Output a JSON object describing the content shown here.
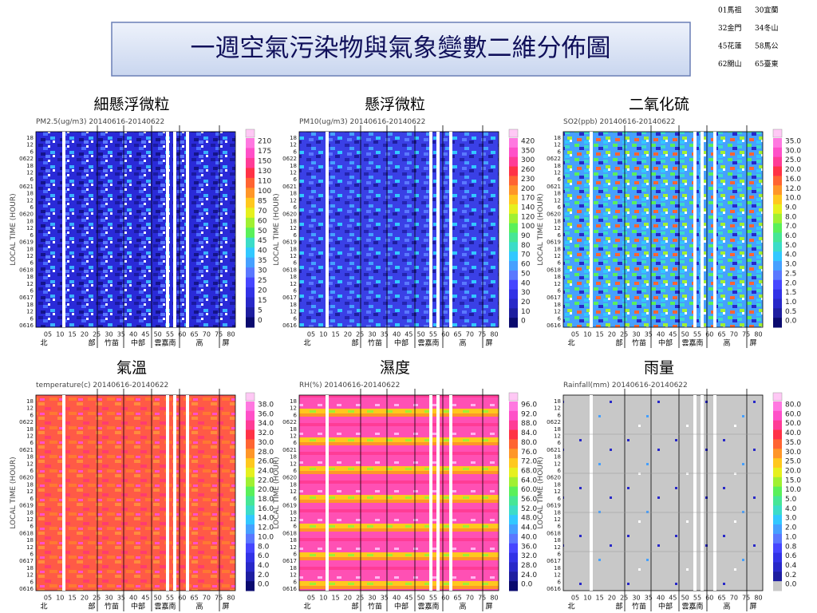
{
  "title": "一週空氣污染物與氣象變數二維分佈圖",
  "station_legend": [
    "01馬祖",
    "30宜蘭",
    "32金門",
    "34冬山",
    "45花蓮",
    "58馬公",
    "62關山",
    "65臺東"
  ],
  "y_axis_label": "LOCAL TIME (HOUR)",
  "y_labels": [
    "18",
    "12",
    "6",
    "0622",
    "18",
    "12",
    "6",
    "0621",
    "18",
    "12",
    "6",
    "0620",
    "18",
    "12",
    "6",
    "0619",
    "18",
    "12",
    "6",
    "0618",
    "18",
    "12",
    "6",
    "0617",
    "18",
    "12",
    "6",
    "0616"
  ],
  "x_labels": [
    "05",
    "10",
    "15",
    "20",
    "25",
    "30",
    "35",
    "40",
    "45",
    "50",
    "55",
    "60",
    "65",
    "70",
    "75",
    "80"
  ],
  "region_labels": [
    "北",
    "部",
    "竹苗",
    "中部",
    "雲嘉南",
    "高",
    "屏"
  ],
  "panels": [
    {
      "heading": "細懸浮微粒",
      "subtitle": "PM2.5(ug/m3) 20140616-20140622",
      "colorbar": [
        "210",
        "175",
        "150",
        "130",
        "110",
        "100",
        "85",
        "70",
        "60",
        "50",
        "45",
        "40",
        "35",
        "30",
        "25",
        "20",
        "15",
        "5",
        "0"
      ]
    },
    {
      "heading": "懸浮微粒",
      "subtitle": "PM10(ug/m3) 20140616-20140622",
      "colorbar": [
        "420",
        "350",
        "300",
        "260",
        "230",
        "200",
        "170",
        "140",
        "120",
        "100",
        "90",
        "80",
        "70",
        "60",
        "50",
        "40",
        "30",
        "20",
        "10",
        "0"
      ]
    },
    {
      "heading": "二氧化硫",
      "subtitle": "SO2(ppb) 20140616-20140622",
      "colorbar": [
        "35.0",
        "30.0",
        "25.0",
        "20.0",
        "16.0",
        "12.0",
        "10.0",
        "9.0",
        "8.0",
        "7.0",
        "6.0",
        "5.0",
        "4.0",
        "3.0",
        "2.5",
        "2.0",
        "1.5",
        "1.0",
        "0.5",
        "0.0"
      ]
    },
    {
      "heading": "氣溫",
      "subtitle": "temperature(c) 20140616-20140622",
      "colorbar": [
        "38.0",
        "36.0",
        "34.0",
        "32.0",
        "30.0",
        "28.0",
        "26.0",
        "24.0",
        "22.0",
        "20.0",
        "18.0",
        "16.0",
        "14.0",
        "12.0",
        "10.0",
        "8.0",
        "6.0",
        "4.0",
        "2.0",
        "0.0"
      ]
    },
    {
      "heading": "濕度",
      "subtitle": "RH(%) 20140616-20140622",
      "colorbar": [
        "96.0",
        "92.0",
        "88.0",
        "84.0",
        "80.0",
        "76.0",
        "72.0",
        "68.0",
        "64.0",
        "60.0",
        "56.0",
        "52.0",
        "48.0",
        "44.0",
        "40.0",
        "36.0",
        "32.0",
        "28.0",
        "24.0",
        "0.0"
      ]
    },
    {
      "heading": "雨量",
      "subtitle": "Rainfall(mm) 20140616-20140622",
      "colorbar": [
        "80.0",
        "60.0",
        "50.0",
        "40.0",
        "35.0",
        "30.0",
        "25.0",
        "20.0",
        "15.0",
        "10.0",
        "5.0",
        "4.0",
        "3.0",
        "2.0",
        "1.0",
        "0.8",
        "0.6",
        "0.4",
        "0.2",
        "0.0"
      ]
    }
  ]
}
